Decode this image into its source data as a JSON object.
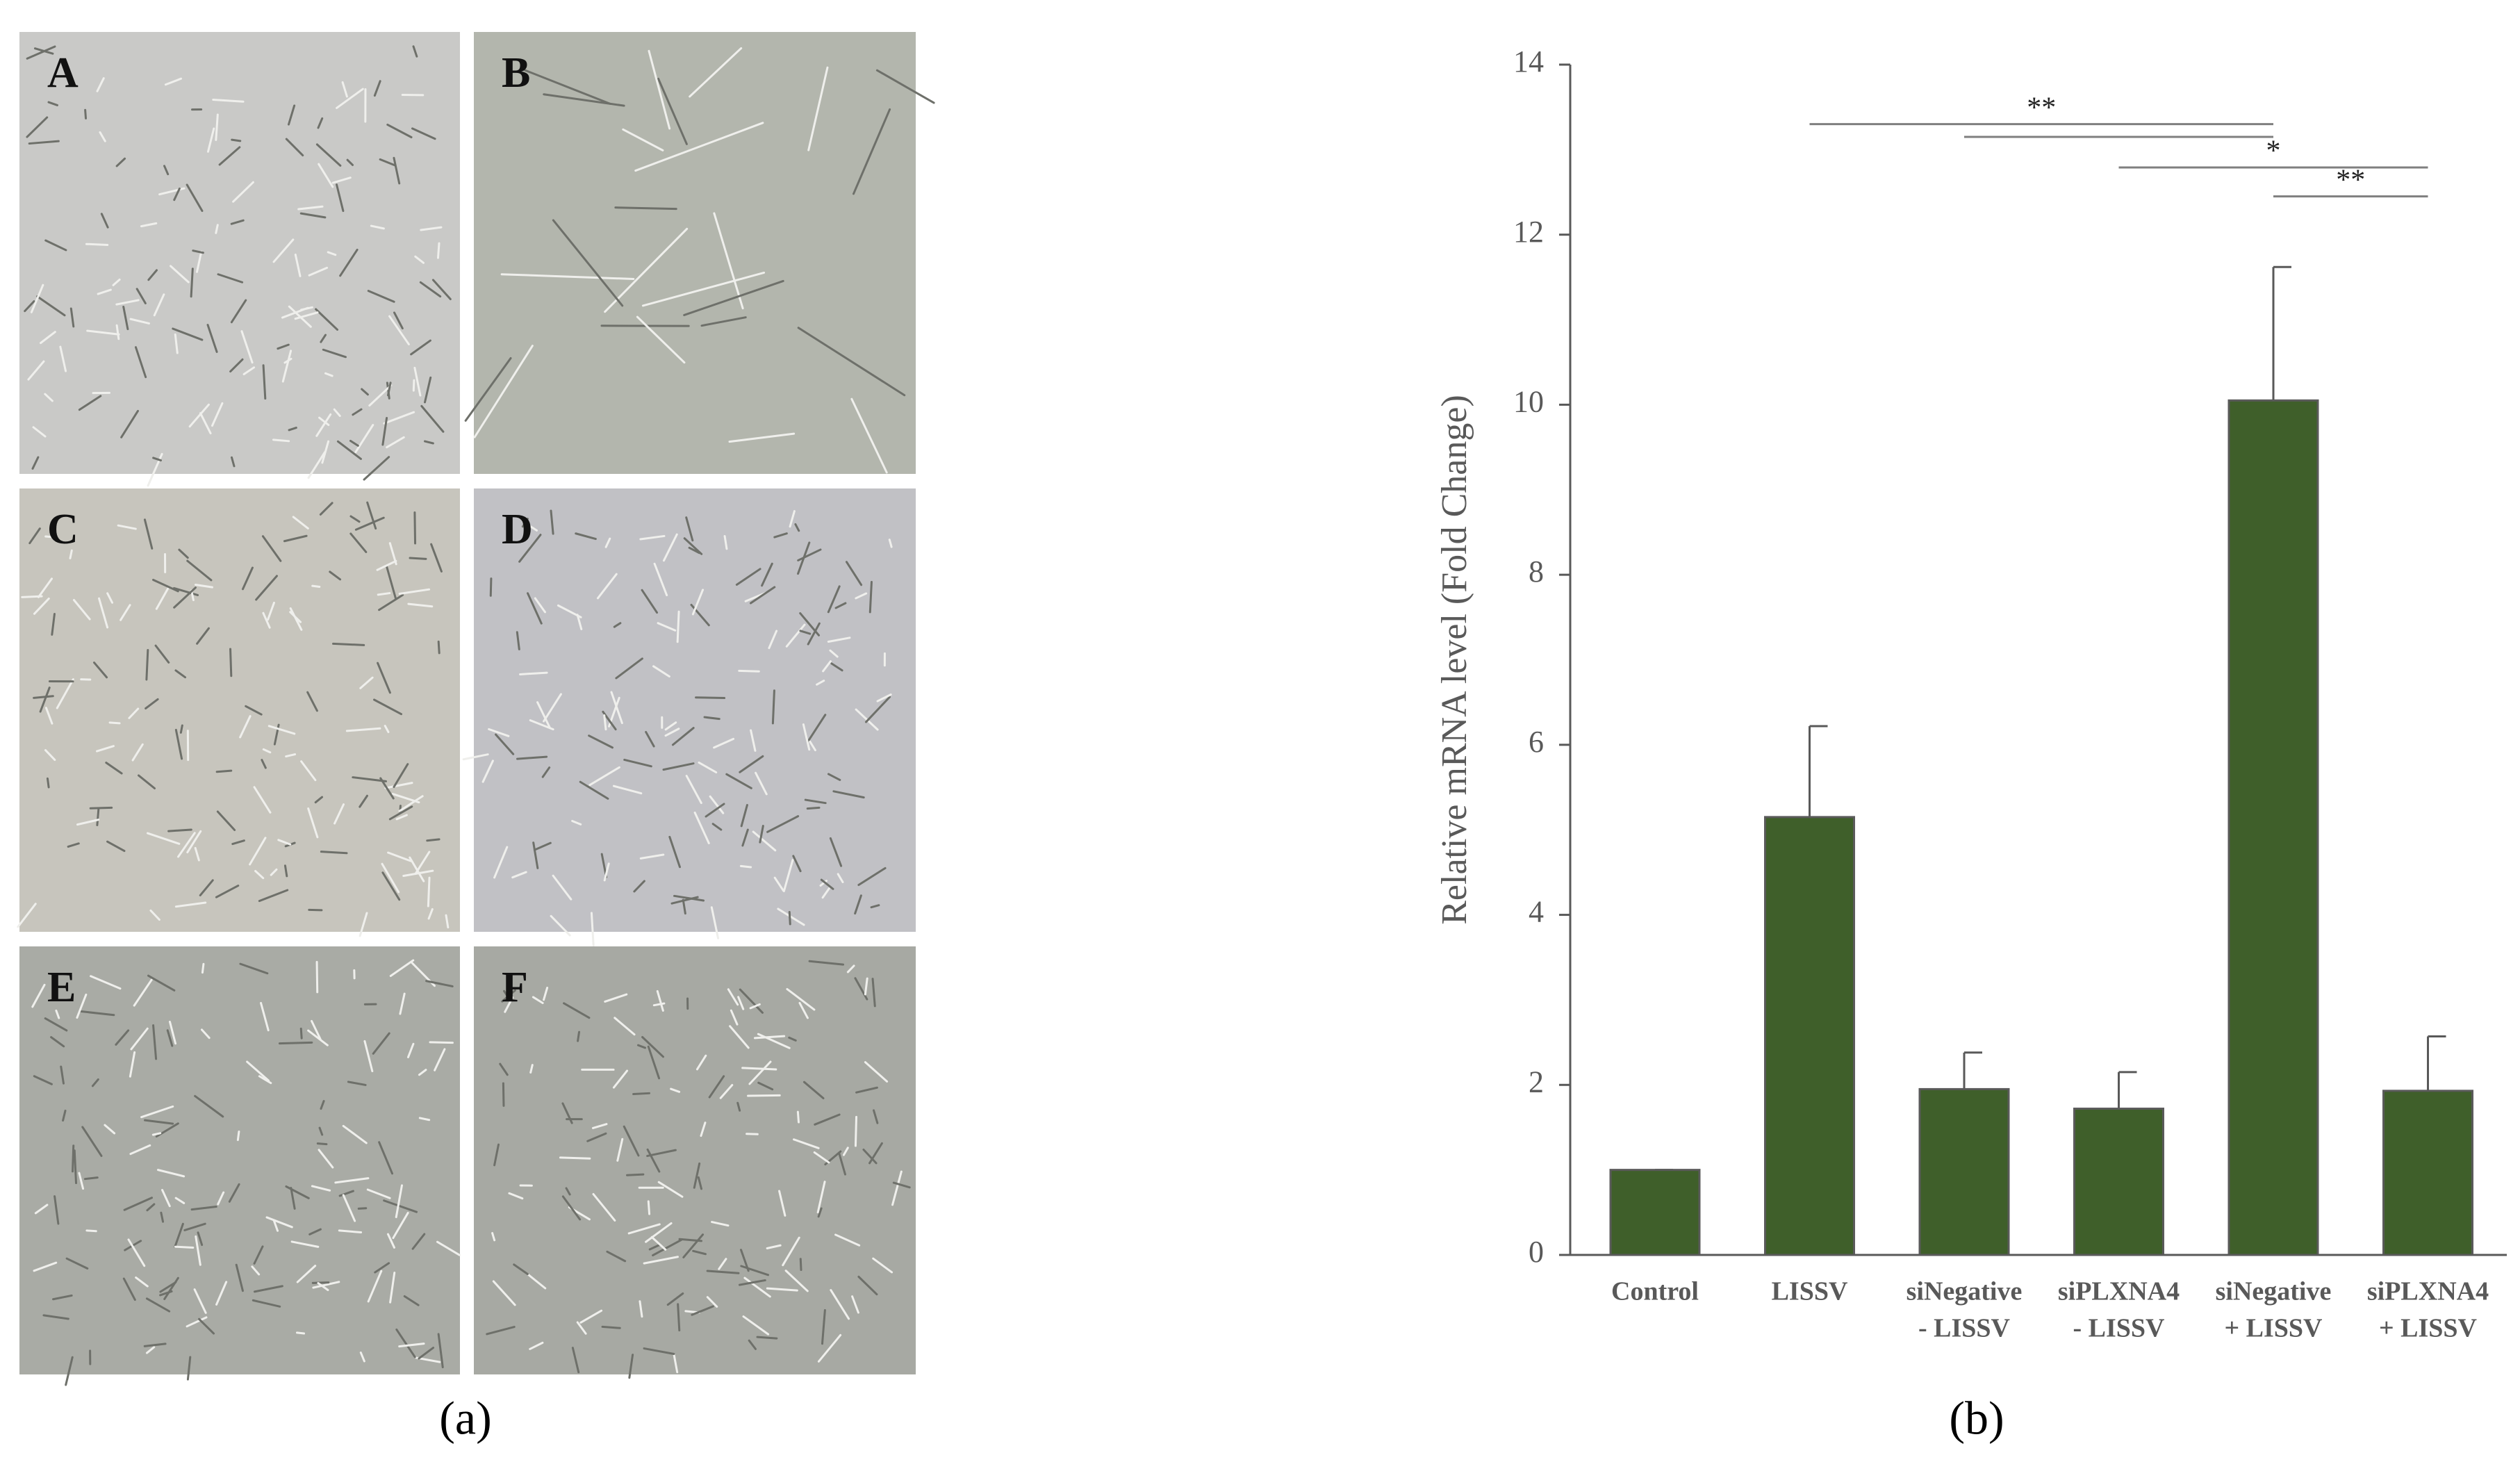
{
  "panel_a": {
    "images": [
      {
        "label": "A",
        "color": "#c9c9c7"
      },
      {
        "label": "B",
        "color": "#b3b6ad"
      },
      {
        "label": "C",
        "color": "#c7c5bd"
      },
      {
        "label": "D",
        "color": "#c1c1c5"
      },
      {
        "label": "E",
        "color": "#a9aba5"
      },
      {
        "label": "F",
        "color": "#a7a9a3"
      }
    ],
    "caption": "(a)"
  },
  "caption_b": "(b)",
  "chart_data": {
    "type": "bar",
    "y_label": "Relative mRNA level (Fold Change)",
    "categories": [
      [
        "Control"
      ],
      [
        "LISSV"
      ],
      [
        "siNegative",
        "- LISSV"
      ],
      [
        "siPLXNA4",
        "- LISSV"
      ],
      [
        "siNegative",
        "+ LISSV"
      ],
      [
        "siPLXNA4",
        "+ LISSV"
      ]
    ],
    "values": [
      1.0,
      5.15,
      1.95,
      1.72,
      10.05,
      1.93
    ],
    "errors": [
      0,
      1.07,
      0.43,
      0.43,
      1.57,
      0.64
    ],
    "color": "#3f5f2a",
    "ylim": [
      0,
      14
    ],
    "yticks": [
      0,
      2,
      4,
      6,
      8,
      10,
      12,
      14
    ],
    "significance": [
      {
        "from": 1,
        "to": 4,
        "y": 13.3,
        "label": "**"
      },
      {
        "from": 2,
        "to": 4,
        "y": 13.15
      },
      {
        "from": 3,
        "to": 5,
        "y": 12.79,
        "label": "*"
      },
      {
        "from": 4,
        "to": 5,
        "y": 12.45,
        "label": "**"
      }
    ]
  }
}
